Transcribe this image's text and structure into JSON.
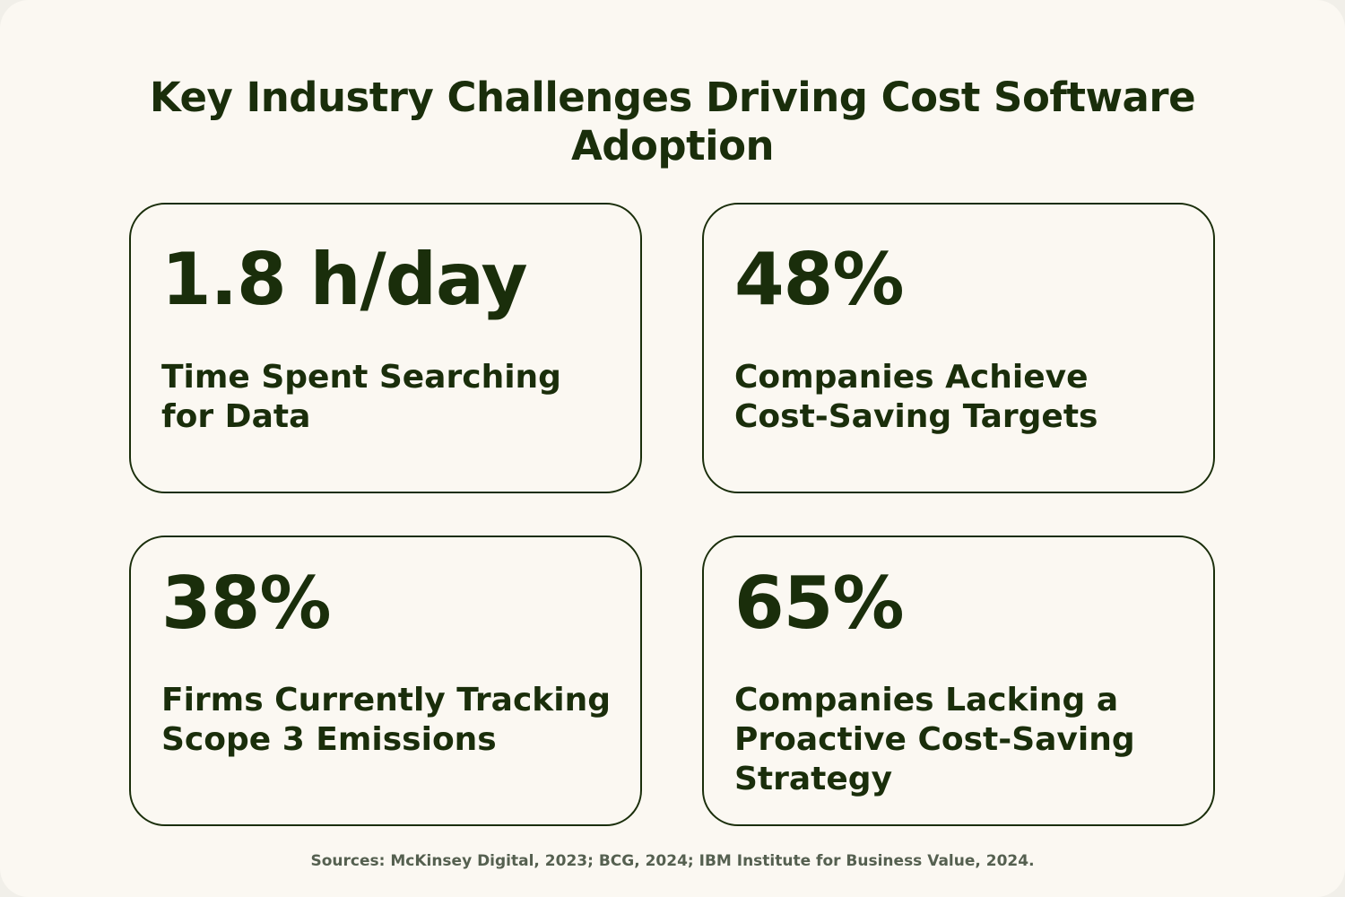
{
  "title": "Key Industry Challenges Driving Cost Software Adoption",
  "cards": [
    {
      "stat": "1.8 h/day",
      "description": "Time Spent Searching for Data"
    },
    {
      "stat": "48%",
      "description": "Companies Achieve Cost-Saving Targets"
    },
    {
      "stat": "38%",
      "description": "Firms Currently Tracking Scope 3 Emissions"
    },
    {
      "stat": "65%",
      "description": "Companies Lacking a Proactive Cost-Saving Strategy"
    }
  ],
  "sources": "Sources: McKinsey Digital, 2023; BCG, 2024; IBM Institute for Business Value, 2024.",
  "colors": {
    "background": "#fbf8f2",
    "text": "#1a2e0b",
    "border": "#1a2e0b",
    "sources_text": "#556050"
  }
}
